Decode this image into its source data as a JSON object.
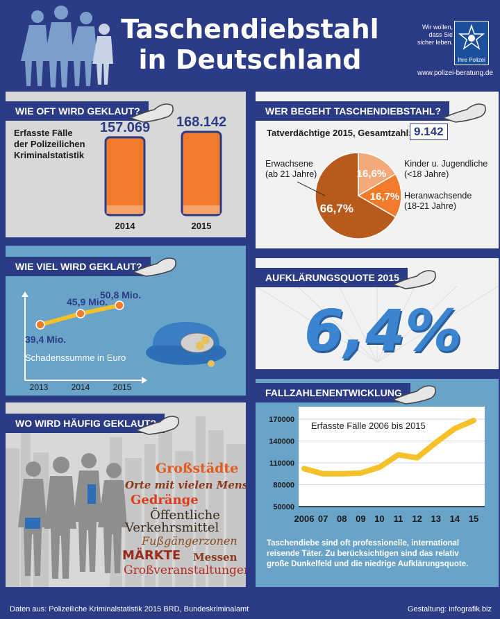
{
  "header": {
    "title_line1": "Taschendiebstahl",
    "title_line2": "in Deutschland",
    "police_text_1": "Wir wollen,",
    "police_text_2": "dass Sie",
    "police_text_3": "sicher leben.",
    "police_badge": "Ihre Polizei",
    "url": "www.polizei-beratung.de"
  },
  "panel_cases": {
    "label": "WIE OFT WIRD GEKLAUT?",
    "desc_1": "Erfasste Fälle",
    "desc_2": "der Polizeilichen",
    "desc_3": "Kriminalstatistik"
  },
  "panel_damage": {
    "label": "WIE VIEL WIRD GEKLAUT?",
    "caption": "Schadenssumme in Euro"
  },
  "panel_where": {
    "label": "WO WIRD HÄUFIG GEKLAUT?",
    "words": [
      "Großstädte",
      "Orte mit vielen Menschen",
      "Gedränge",
      "Öffentliche",
      "Verkehrsmittel",
      "Fußgängerzonen",
      "MÄRKTE",
      "Messen",
      "Großveranstaltungen"
    ]
  },
  "panel_who": {
    "label": "WER BEGEHT TASCHENDIEBSTAHL?",
    "total_label": "Tatverdächtige 2015, Gesamtzahl:",
    "total_value": "9.142"
  },
  "panel_rate": {
    "label": "AUFKLÄRUNGSQUOTE 2015",
    "value": "6,4%"
  },
  "panel_trend": {
    "label": "FALLZAHLENENTWICKLUNG",
    "note": "Taschendiebe sind oft professionelle, international reisende Täter. Zu berücksichtigen sind das relativ große Dunkelfeld und die niedrige Aufklärungsquote."
  },
  "colors": {
    "navy": "#2b3b86",
    "orange": "#f07b2a",
    "yellow": "#f5c02a",
    "brown": "#b85a1c"
  },
  "footer": {
    "source": "Daten aus: Polizeiliche Kriminalstatistik 2015 BRD, Bundeskriminalamt",
    "credit": "Gestaltung: infografik.biz"
  },
  "chart_data": [
    {
      "type": "bar",
      "categories": [
        "2014",
        "2015"
      ],
      "values": [
        157069,
        168142
      ],
      "value_labels": [
        "157.069",
        "168.142"
      ]
    },
    {
      "type": "line",
      "x": [
        "2013",
        "2014",
        "2015"
      ],
      "values": [
        39.4,
        45.9,
        50.8
      ],
      "value_labels": [
        "39,4 Mio.",
        "45,9 Mio.",
        "50,8 Mio."
      ],
      "xlabel": "Schadenssumme in Euro"
    },
    {
      "type": "pie",
      "labels": [
        "Erwachsene (ab 21 Jahre)",
        "Kinder u. Jugendliche (<18 Jahre)",
        "Heranwachsende (18-21 Jahre)"
      ],
      "label_lines": [
        [
          "Erwachsene",
          "(ab 21 Jahre)"
        ],
        [
          "Kinder u. Jugendliche",
          "(<18 Jahre)"
        ],
        [
          "Heranwachsende",
          "(18-21 Jahre)"
        ]
      ],
      "values": [
        66.7,
        16.6,
        16.7
      ],
      "value_labels": [
        "66,7%",
        "16,6%",
        "16,7%"
      ]
    },
    {
      "type": "line",
      "title": "Erfasste Fälle 2006 bis 2015",
      "x": [
        "2006",
        "07",
        "08",
        "09",
        "10",
        "11",
        "12",
        "13",
        "14",
        "15"
      ],
      "values": [
        102000,
        95000,
        95000,
        96000,
        104000,
        121000,
        117000,
        138000,
        157069,
        168142
      ],
      "ylim": [
        50000,
        170000
      ],
      "yticks": [
        50000,
        80000,
        110000,
        140000,
        170000
      ]
    }
  ]
}
